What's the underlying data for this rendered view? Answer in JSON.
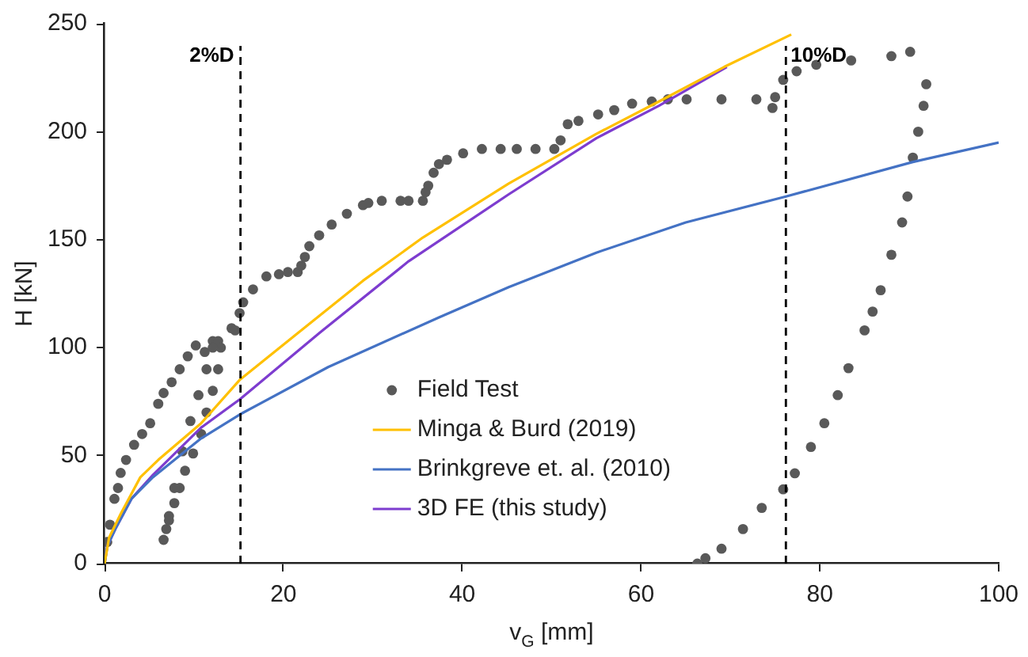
{
  "chart_data": {
    "type": "line",
    "xlabel": "v$_{G}$ [mm]",
    "ylabel": "H [kN]",
    "xlim": [
      0,
      100
    ],
    "xticks": [
      0,
      20,
      40,
      60,
      80,
      100
    ],
    "ylim": [
      0,
      250
    ],
    "yticks": [
      0,
      50,
      100,
      150,
      200,
      250
    ],
    "grid": false,
    "legend": "bottom",
    "line_style": "solid",
    "ref_lines": [
      {
        "axis": "x",
        "value": 15.2,
        "label": "2%D",
        "color": "#000000",
        "line_style": "dashed"
      },
      {
        "axis": "x",
        "value": 76.2,
        "label": "10%D",
        "color": "#000000",
        "line_style": "dashed"
      }
    ],
    "series": [
      {
        "name": "Field Test",
        "type": "scatter",
        "marker": "circle",
        "color": "#595959",
        "x": [
          0.3,
          0.6,
          1.1,
          1.5,
          1.8,
          2.4,
          3.3,
          4.2,
          5.1,
          6,
          6.6,
          7.5,
          8.4,
          9.3,
          10.2,
          11.2,
          12.1,
          12.7,
          13,
          12.7,
          12.1,
          11.4,
          10.8,
          9.9,
          9,
          8.4,
          7.8,
          7.2,
          6.9,
          6.6,
          7.2,
          7.8,
          8.7,
          9.6,
          10.5,
          11.4,
          12.1,
          14.2,
          14.6,
          15.1,
          15.5,
          16.6,
          18.1,
          19.5,
          20.5,
          21.6,
          22,
          22.4,
          22.9,
          24,
          25.4,
          27.1,
          28.9,
          29.5,
          31,
          33.1,
          34,
          35.6,
          35.9,
          36.2,
          36.8,
          37.4,
          38.3,
          40.1,
          42.2,
          44.3,
          46.1,
          48.2,
          50.3,
          51,
          51.8,
          53,
          55.2,
          57,
          59,
          61.2,
          63,
          65.1,
          69,
          72.9,
          74.7,
          75,
          75.9,
          77.4,
          79.6,
          83.5,
          88,
          90.1,
          91.9,
          91.6,
          91,
          90.4,
          89.8,
          89.2,
          88,
          86.8,
          85.9,
          85,
          83.2,
          82,
          80.5,
          79,
          77.2,
          75.9,
          73.5,
          71.4,
          69,
          67.2,
          66.3
        ],
        "values": [
          10,
          18,
          30,
          35,
          42,
          48,
          55,
          60,
          65,
          74,
          79,
          84,
          90,
          96,
          101,
          98,
          103,
          103,
          100,
          90,
          80,
          70,
          60,
          51,
          43,
          35,
          28,
          22,
          16,
          11,
          20,
          35,
          52,
          66,
          78,
          90,
          100,
          109,
          108,
          116,
          121,
          127,
          133,
          134,
          135,
          135,
          138,
          142,
          147,
          152,
          157,
          162,
          166,
          167,
          168,
          168,
          168,
          168,
          172,
          175,
          181,
          185,
          187,
          190,
          192,
          192,
          192,
          192,
          192,
          196,
          203.5,
          205,
          208,
          210,
          213,
          214,
          215,
          215,
          215,
          215,
          211,
          216,
          224,
          228,
          231,
          233,
          235,
          237,
          222,
          212,
          200,
          188,
          170,
          158,
          143,
          126.6,
          116.7,
          108,
          90.5,
          78,
          65,
          54,
          41.8,
          34.4,
          25.8,
          16,
          6.9,
          2.5,
          0
        ]
      },
      {
        "name": "Minga & Burd (2019)",
        "type": "line",
        "marker": "none",
        "color": "#ffc000",
        "x": [
          0,
          0.5,
          1.8,
          4,
          6,
          10.8,
          15.1,
          21.7,
          28.9,
          35.6,
          45.2,
          55,
          62,
          69.3,
          76.8
        ],
        "values": [
          0,
          12,
          23,
          40,
          48,
          65,
          85,
          107,
          131,
          151,
          176,
          199,
          214,
          230,
          245
        ]
      },
      {
        "name": "Brinkgreve et. al. (2010)",
        "type": "line",
        "marker": "none",
        "color": "#4472c4",
        "x": [
          0,
          0.3,
          1.2,
          3,
          5.4,
          10.8,
          15.1,
          25,
          37.4,
          45.2,
          55,
          65,
          76.2,
          90.4,
          100
        ],
        "values": [
          0,
          8,
          16,
          30,
          40,
          58,
          69,
          91,
          114,
          128,
          144,
          158,
          170,
          186,
          195
        ]
      },
      {
        "name": "3D FE (this study)",
        "type": "line",
        "marker": "none",
        "color": "#7d3ccf",
        "x": [
          0,
          0.3,
          1.2,
          3,
          5.4,
          10.8,
          15.1,
          24.1,
          34,
          45.2,
          55,
          62,
          69.6
        ],
        "values": [
          0,
          8,
          16,
          30,
          41,
          63,
          76,
          107,
          140,
          171,
          197,
          212,
          230
        ]
      }
    ]
  }
}
